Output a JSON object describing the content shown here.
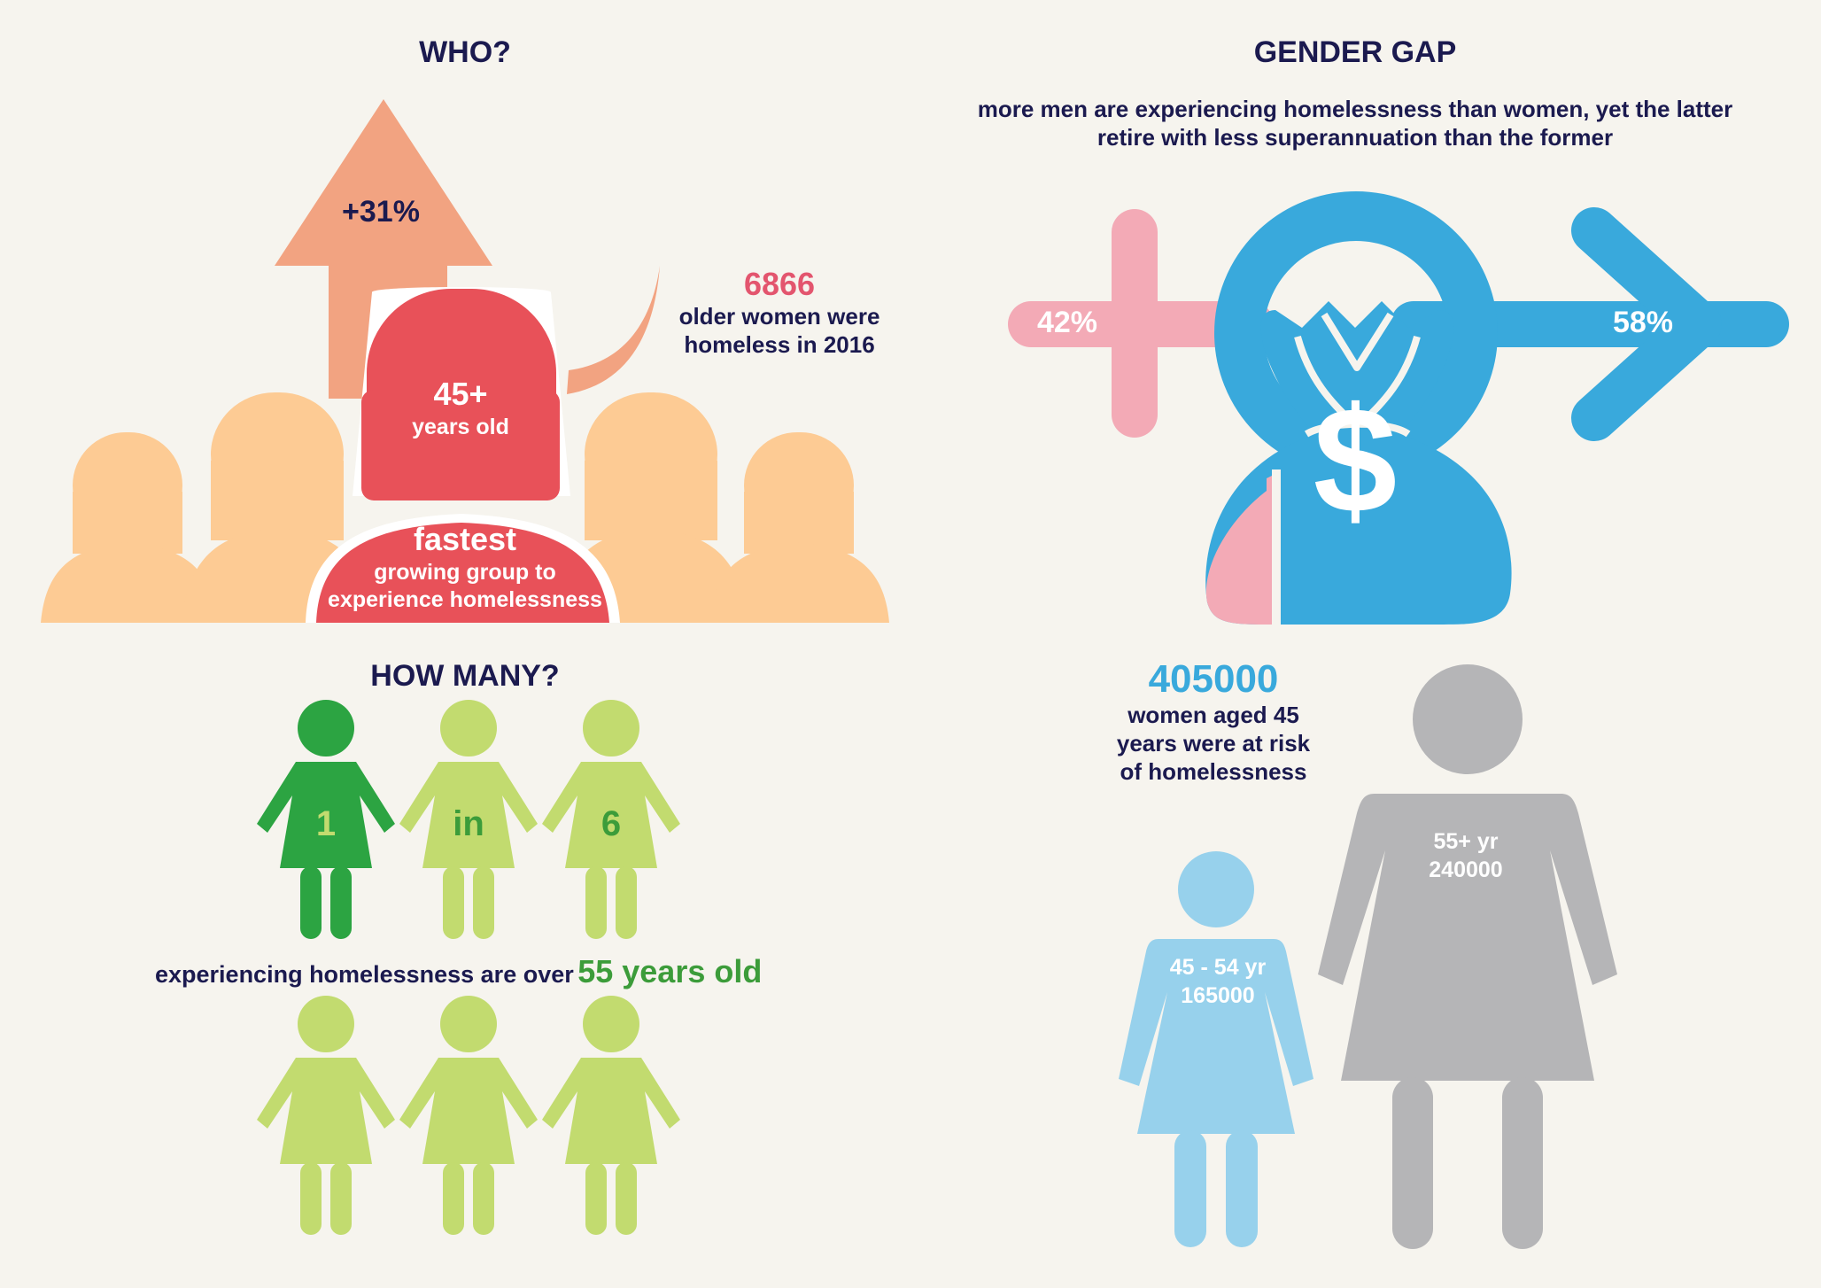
{
  "colors": {
    "background": "#f6f4ee",
    "navy": "#1b1a4f",
    "red": "#e85159",
    "peach": "#fdcb94",
    "salmon": "#f2a381",
    "pink_red": "#e3556e",
    "dark_green": "#2ca442",
    "light_green": "#c2db6f",
    "green_text": "#3c9c3a",
    "blue": "#39a9dc",
    "light_blue": "#97d1ec",
    "pink": "#f3aab6",
    "gray": "#b5b5b7"
  },
  "who": {
    "title": "WHO?",
    "growth": "+31%",
    "age_number": "45+",
    "age_label": "years old",
    "fastest": "fastest",
    "fastest_line1": "growing group to",
    "fastest_line2": "experience homelessness",
    "count": "6866",
    "count_line1": "older women were",
    "count_line2": "homeless in 2016"
  },
  "how_many": {
    "title": "HOW MANY?",
    "figure_labels": [
      "1",
      "in",
      "6"
    ],
    "caption_prefix": "experiencing homelessness are over",
    "caption_highlight": "55 years old"
  },
  "gender_gap": {
    "title": "GENDER GAP",
    "subtitle_line1": "more men are experiencing homelessness than women, yet the latter",
    "subtitle_line2": "retire with less superannuation than the former",
    "female_share": "42%",
    "male_share": "58%",
    "female_fraction": 0.42,
    "male_fraction": 0.58,
    "currency_symbol": "$"
  },
  "at_risk": {
    "count": "405000",
    "line1": "women aged 45",
    "line2": "years were at risk",
    "line3": "of homelessness",
    "group_young_label": "45 - 54 yr",
    "group_young_value": "165000",
    "group_old_label": "55+ yr",
    "group_old_value": "240000"
  }
}
